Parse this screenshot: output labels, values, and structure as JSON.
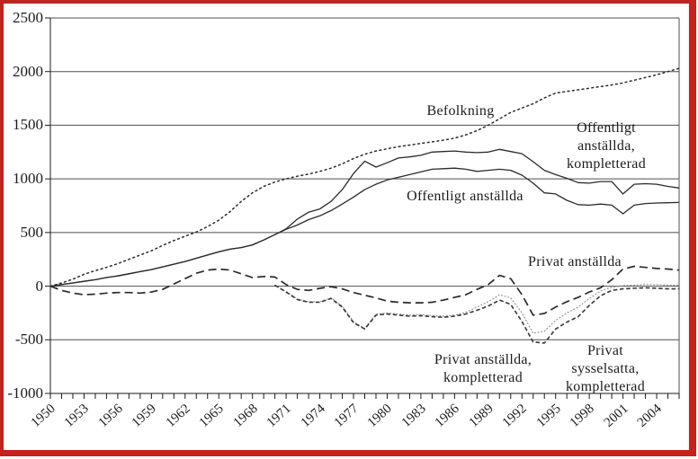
{
  "page": {
    "background": "#ffffff",
    "border_color": "#c5211d"
  },
  "chart_data": {
    "type": "line",
    "title": "",
    "xlabel": "",
    "ylabel": "",
    "grid": "horizontal",
    "legend_position": "inline-annotations",
    "x_axis": {
      "start_year": 1950,
      "end_year": 2006,
      "tick_every": 1,
      "labels": [
        "1950",
        "1953",
        "1956",
        "1959",
        "1962",
        "1965",
        "1968",
        "1971",
        "1974",
        "1977",
        "1980",
        "1983",
        "1986",
        "1989",
        "1992",
        "1995",
        "1998",
        "2001",
        "2004"
      ]
    },
    "y_axis": {
      "min": -1000,
      "max": 2500,
      "step": 500,
      "labels": [
        "2500",
        "2000",
        "1500",
        "1000",
        "500",
        "0",
        "-500",
        "-1000"
      ]
    },
    "colors": {
      "line": "#2b2b2b",
      "grid": "#4f4f4f",
      "axis": "#1a1a1a",
      "light_dotted": "#8a8a8a",
      "bold_dotted": "#383838"
    },
    "series": [
      {
        "name": "Befolkning",
        "style": "dotted",
        "start_year": 1950,
        "values": [
          0,
          30,
          65,
          110,
          145,
          175,
          210,
          250,
          290,
          330,
          380,
          425,
          465,
          505,
          555,
          615,
          695,
          790,
          870,
          930,
          970,
          1000,
          1025,
          1045,
          1070,
          1100,
          1140,
          1190,
          1230,
          1260,
          1280,
          1300,
          1315,
          1330,
          1345,
          1360,
          1380,
          1410,
          1450,
          1500,
          1560,
          1620,
          1660,
          1700,
          1755,
          1800,
          1815,
          1830,
          1845,
          1860,
          1875,
          1895,
          1920,
          1945,
          1970,
          2000,
          2030
        ]
      },
      {
        "name": "Offentligt anställda, kompletterad",
        "style": "solid",
        "start_year": 1950,
        "values": [
          0,
          15,
          30,
          45,
          60,
          80,
          95,
          115,
          135,
          155,
          180,
          205,
          230,
          260,
          290,
          320,
          345,
          360,
          385,
          430,
          480,
          535,
          625,
          690,
          720,
          790,
          900,
          1050,
          1165,
          1110,
          1150,
          1195,
          1205,
          1220,
          1250,
          1255,
          1260,
          1250,
          1245,
          1250,
          1275,
          1255,
          1235,
          1160,
          1080,
          1040,
          1005,
          965,
          960,
          975,
          975,
          860,
          950,
          955,
          950,
          930,
          915
        ]
      },
      {
        "name": "Offentligt anställda",
        "style": "solid",
        "start_year": 1950,
        "values": [
          0,
          15,
          30,
          45,
          60,
          80,
          95,
          115,
          135,
          155,
          180,
          205,
          230,
          260,
          290,
          320,
          345,
          360,
          385,
          430,
          480,
          530,
          570,
          620,
          655,
          705,
          765,
          830,
          900,
          950,
          990,
          1015,
          1040,
          1065,
          1090,
          1095,
          1100,
          1090,
          1070,
          1080,
          1090,
          1080,
          1035,
          960,
          870,
          860,
          800,
          760,
          755,
          765,
          755,
          675,
          755,
          770,
          775,
          778,
          780
        ]
      },
      {
        "name": "Privat anställda",
        "style": "dashed",
        "start_year": 1950,
        "values": [
          0,
          -40,
          -65,
          -80,
          -75,
          -65,
          -60,
          -60,
          -65,
          -55,
          -30,
          20,
          70,
          120,
          150,
          160,
          150,
          115,
          80,
          90,
          85,
          15,
          -30,
          -40,
          -20,
          -5,
          -25,
          -60,
          -85,
          -110,
          -140,
          -150,
          -155,
          -155,
          -150,
          -130,
          -105,
          -80,
          -30,
          15,
          100,
          70,
          -80,
          -270,
          -255,
          -195,
          -145,
          -105,
          -55,
          -15,
          60,
          160,
          185,
          175,
          165,
          160,
          150
        ]
      },
      {
        "name": "Privat anställda, kompletterad",
        "style": "fine-dotted",
        "start_year": 1970,
        "values": [
          10,
          -50,
          -120,
          -145,
          -145,
          -110,
          -185,
          -330,
          -395,
          -260,
          -250,
          -260,
          -270,
          -265,
          -275,
          -280,
          -270,
          -245,
          -195,
          -145,
          -80,
          -110,
          -250,
          -440,
          -420,
          -320,
          -250,
          -195,
          -115,
          -45,
          -10,
          5,
          10,
          15,
          15,
          10,
          10
        ]
      },
      {
        "name": "Privat sysselsatta, kompletterad",
        "style": "short-dash",
        "start_year": 1970,
        "values": [
          10,
          -55,
          -125,
          -150,
          -150,
          -115,
          -195,
          -340,
          -400,
          -270,
          -260,
          -270,
          -280,
          -275,
          -285,
          -290,
          -280,
          -260,
          -225,
          -185,
          -130,
          -170,
          -330,
          -520,
          -530,
          -400,
          -335,
          -285,
          -180,
          -90,
          -40,
          -25,
          -20,
          -15,
          -20,
          -25,
          -25
        ]
      }
    ],
    "annotations": [
      {
        "text": "Befolkning"
      },
      {
        "text": "Offentligt anställda,\nkompletterad"
      },
      {
        "text": "Offentligt anställda"
      },
      {
        "text": "Privat anställda"
      },
      {
        "text": "Privat anställda,\nkompletterad"
      },
      {
        "text": "Privat sysselsatta,\nkompletterad"
      }
    ]
  }
}
